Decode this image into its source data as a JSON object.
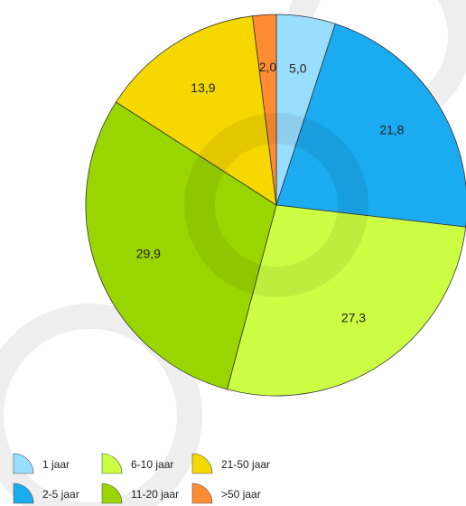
{
  "chart_data": {
    "type": "pie",
    "categories": [
      "1 jaar",
      "2-5 jaar",
      "6-10 jaar",
      "11-20 jaar",
      "21-50 jaar",
      ">50 jaar"
    ],
    "values": [
      5.0,
      21.8,
      27.3,
      29.9,
      13.9,
      2.0
    ],
    "value_labels": [
      "5,0",
      "21,8",
      "27,3",
      "29,9",
      "13,9",
      "2,0"
    ],
    "colors": [
      "#99ddff",
      "#1aabf0",
      "#ccff44",
      "#99d600",
      "#f5d800",
      "#ff8c33"
    ]
  }
}
